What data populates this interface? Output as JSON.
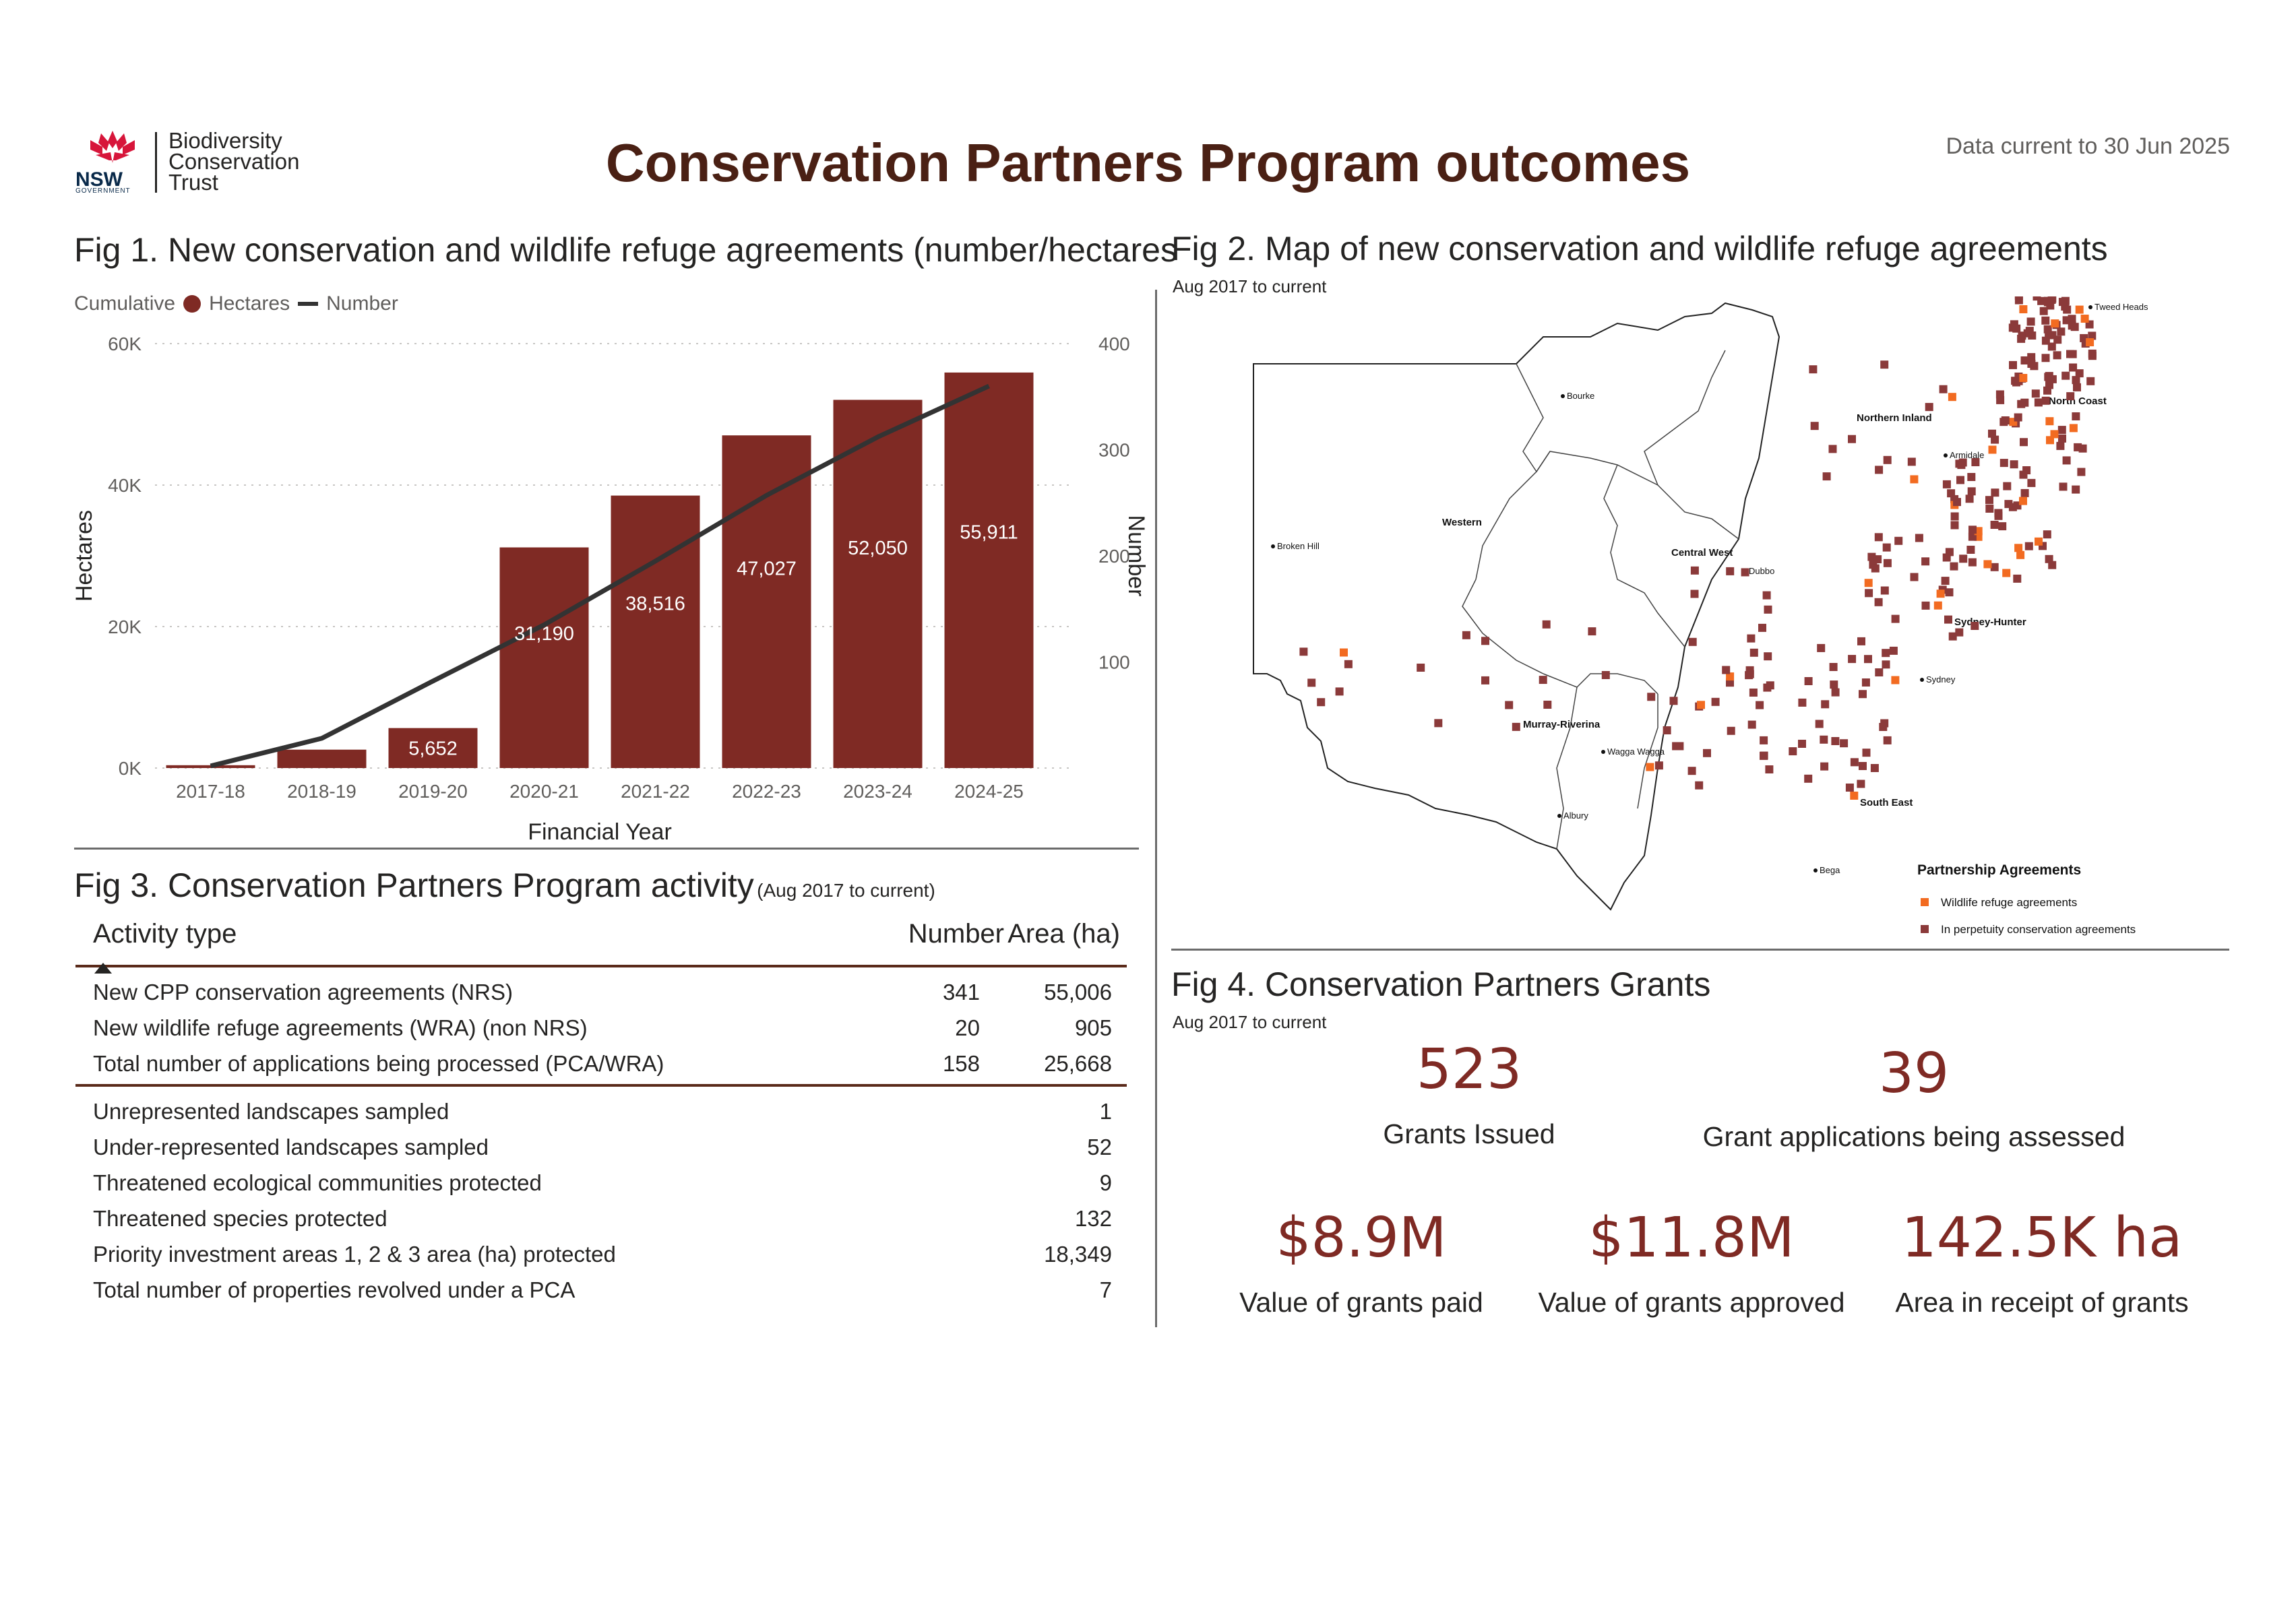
{
  "header": {
    "title": "Conservation Partners Program outcomes",
    "data_current": "Data current to 30 Jun 2025",
    "logo_lines": [
      "Biodiversity",
      "Conservation",
      "Trust"
    ],
    "logo_nsw": "NSW",
    "logo_gov": "GOVERNMENT"
  },
  "fig1": {
    "title": "Fig 1. New conservation and wildlife refuge agreements (number/hectares",
    "legend_title": "Cumulative",
    "legend_items": [
      "Hectares",
      "Number"
    ]
  },
  "fig2": {
    "title": "Fig 2. Map of new conservation and wildlife refuge agreements",
    "subtitle": "Aug 2017 to current",
    "regions": [
      "Western",
      "Central West",
      "Northern Inland",
      "North Coast",
      "Sydney-Hunter",
      "Murray-Riverina",
      "South East"
    ],
    "towns": [
      "Tweed Heads",
      "Bourke",
      "Armidale",
      "Broken Hill",
      "Dubbo",
      "Sydney",
      "Wagga Wagga",
      "Albury",
      "Bega"
    ],
    "legend_title": "Partnership Agreements",
    "legend_items": [
      {
        "label": "Wildlife refuge agreements",
        "color": "#f26b21"
      },
      {
        "label": "In perpetuity conservation agreements",
        "color": "#8b3a3a"
      }
    ]
  },
  "fig3": {
    "title": "Fig 3. Conservation Partners Program activity",
    "title_note": "(Aug 2017 to current)",
    "columns": [
      "Activity type",
      "Number",
      "Area (ha)"
    ],
    "group1": [
      {
        "label": "New CPP conservation agreements (NRS)",
        "number": "341",
        "area": "55,006"
      },
      {
        "label": "New wildlife refuge agreements (WRA) (non NRS)",
        "number": "20",
        "area": "905"
      },
      {
        "label": "Total number of applications being processed (PCA/WRA)",
        "number": "158",
        "area": "25,668"
      }
    ],
    "group2": [
      {
        "label": "Unrepresented landscapes sampled",
        "area": "1"
      },
      {
        "label": "Under-represented landscapes sampled",
        "area": "52"
      },
      {
        "label": "Threatened ecological communities protected",
        "area": "9"
      },
      {
        "label": "Threatened species protected",
        "area": "132"
      },
      {
        "label": "Priority investment areas 1, 2 & 3 area (ha) protected",
        "area": "18,349"
      },
      {
        "label": "Total number of properties revolved under a PCA",
        "area": "7"
      }
    ]
  },
  "fig4": {
    "title": "Fig 4. Conservation Partners Grants",
    "subtitle": "Aug 2017 to current",
    "kpis": [
      {
        "value": "523",
        "label": "Grants Issued"
      },
      {
        "value": "39",
        "label": "Grant applications being assessed"
      },
      {
        "value": "$8.9M",
        "label": "Value of grants paid"
      },
      {
        "value": "$11.8M",
        "label": "Value of grants approved"
      },
      {
        "value": "142.5K ha",
        "label": "Area in receipt of grants"
      }
    ]
  },
  "chart_data": {
    "type": "bar",
    "title": "Fig 1. New conservation and wildlife refuge agreements (number/hectares",
    "xlabel": "Financial Year",
    "ylabel": "Hectares",
    "y2label": "Number",
    "categories": [
      "2017-18",
      "2018-19",
      "2019-20",
      "2020-21",
      "2021-22",
      "2022-23",
      "2023-24",
      "2024-25"
    ],
    "series": [
      {
        "name": "Hectares",
        "type": "bar",
        "axis": "left",
        "color": "#7f2a24",
        "values": [
          400,
          2600,
          5652,
          31190,
          38516,
          47027,
          52050,
          55911
        ],
        "data_labels": [
          "",
          "",
          "5,652",
          "31,190",
          "38,516",
          "47,027",
          "52,050",
          "55,911"
        ]
      },
      {
        "name": "Number",
        "type": "line",
        "axis": "right",
        "color": "#333333",
        "values": [
          2,
          28,
          82,
          135,
          195,
          257,
          312,
          360
        ]
      }
    ],
    "ylim": [
      0,
      60000
    ],
    "y2lim": [
      0,
      400
    ],
    "yticks": [
      "0K",
      "20K",
      "40K",
      "60K"
    ],
    "y2ticks": [
      "100",
      "200",
      "300",
      "400"
    ],
    "grid": true,
    "legend_position": "top-left"
  }
}
